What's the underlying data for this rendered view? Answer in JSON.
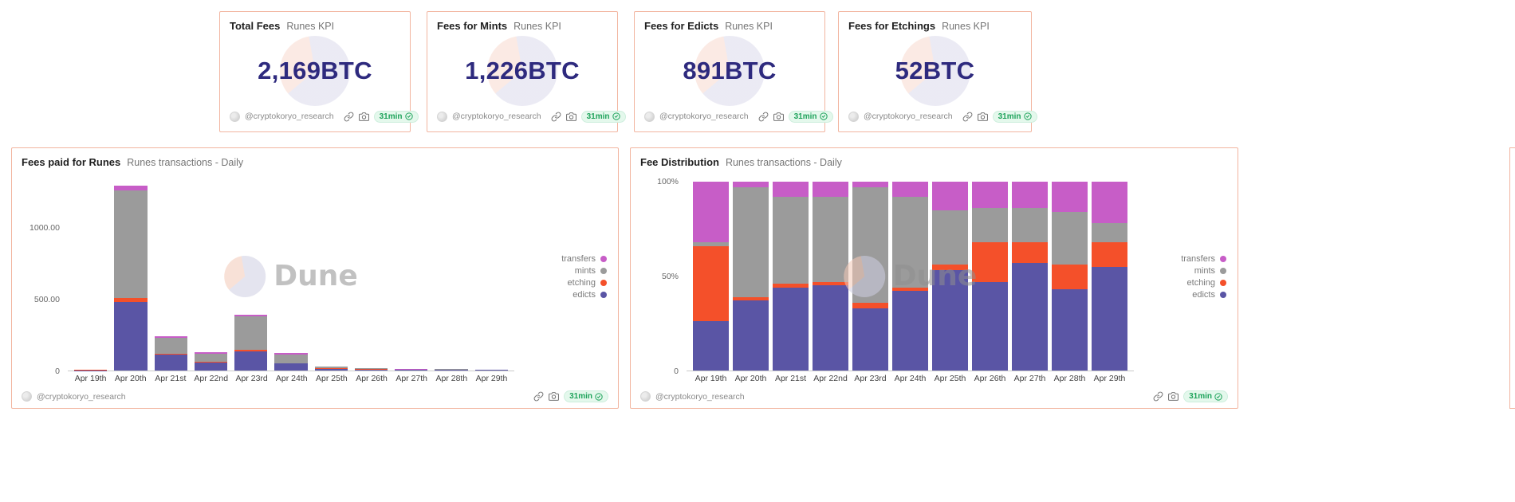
{
  "watermark": "Dune",
  "footer": {
    "handle": "@cryptokoryo_research",
    "badge": "31min"
  },
  "colors": {
    "accent_border": "#f2b5a0",
    "kpi_number": "#2e2a7e",
    "badge_green": "#1ea35b",
    "transfers": "#c75dc7",
    "mints": "#9b9b9b",
    "etching": "#f4502a",
    "edicts": "#5a55a5"
  },
  "kpi_cards": [
    {
      "title": "Total Fees",
      "subtitle": "Runes KPI",
      "value": "2,169BTC"
    },
    {
      "title": "Fees for Mints",
      "subtitle": "Runes KPI",
      "value": "1,226BTC"
    },
    {
      "title": "Fees for Edicts",
      "subtitle": "Runes KPI",
      "value": "891BTC"
    },
    {
      "title": "Fees for Etchings",
      "subtitle": "Runes KPI",
      "value": "52BTC"
    }
  ],
  "chart_data": [
    {
      "type": "bar",
      "stacked": true,
      "title": "Fees paid for Runes",
      "subtitle": "Runes transactions - Daily",
      "categories": [
        "Apr 19th",
        "Apr 20th",
        "Apr 21st",
        "Apr 22nd",
        "Apr 23rd",
        "Apr 24th",
        "Apr 25th",
        "Apr 26th",
        "Apr 27th",
        "Apr 28th",
        "Apr 29th"
      ],
      "series": [
        {
          "name": "edicts",
          "color": "#5a55a5",
          "values": [
            2,
            480,
            110,
            55,
            135,
            48,
            14,
            8,
            4,
            5,
            3
          ]
        },
        {
          "name": "etching",
          "color": "#f4502a",
          "values": [
            1,
            25,
            6,
            4,
            8,
            3,
            1,
            2,
            1,
            2,
            1
          ]
        },
        {
          "name": "mints",
          "color": "#9b9b9b",
          "values": [
            2,
            755,
            115,
            60,
            235,
            62,
            12,
            6,
            3,
            3,
            2
          ]
        },
        {
          "name": "transfers",
          "color": "#c75dc7",
          "values": [
            1,
            30,
            10,
            12,
            12,
            7,
            3,
            2,
            1,
            2,
            2
          ]
        }
      ],
      "legend": [
        "transfers",
        "mints",
        "etching",
        "edicts"
      ],
      "legend_position": "right",
      "grid": false,
      "yticks": [
        {
          "v": 0,
          "label": "0"
        },
        {
          "v": 500,
          "label": "500.00"
        },
        {
          "v": 1000,
          "label": "1000.00"
        }
      ],
      "ylim": [
        0,
        1320
      ]
    },
    {
      "type": "bar",
      "stacked": true,
      "percent": true,
      "title": "Fee Distribution",
      "subtitle": "Runes transactions - Daily",
      "categories": [
        "Apr 19th",
        "Apr 20th",
        "Apr 21st",
        "Apr 22nd",
        "Apr 23rd",
        "Apr 24th",
        "Apr 25th",
        "Apr 26th",
        "Apr 27th",
        "Apr 28th",
        "Apr 29th"
      ],
      "series": [
        {
          "name": "edicts",
          "color": "#5a55a5",
          "values": [
            26,
            37,
            44,
            45,
            33,
            42,
            53,
            47,
            57,
            43,
            55
          ]
        },
        {
          "name": "etching",
          "color": "#f4502a",
          "values": [
            40,
            2,
            2,
            2,
            3,
            2,
            3,
            21,
            11,
            13,
            13
          ]
        },
        {
          "name": "mints",
          "color": "#9b9b9b",
          "values": [
            2,
            58,
            46,
            45,
            61,
            48,
            29,
            18,
            18,
            28,
            10
          ]
        },
        {
          "name": "transfers",
          "color": "#c75dc7",
          "values": [
            32,
            3,
            8,
            8,
            3,
            8,
            15,
            14,
            14,
            16,
            22
          ]
        }
      ],
      "legend": [
        "transfers",
        "mints",
        "etching",
        "edicts"
      ],
      "legend_position": "right",
      "grid": false,
      "yticks": [
        {
          "v": 0,
          "label": "0"
        },
        {
          "v": 50,
          "label": "50%"
        },
        {
          "v": 100,
          "label": "100%"
        }
      ],
      "ylim": [
        0,
        100
      ]
    }
  ]
}
